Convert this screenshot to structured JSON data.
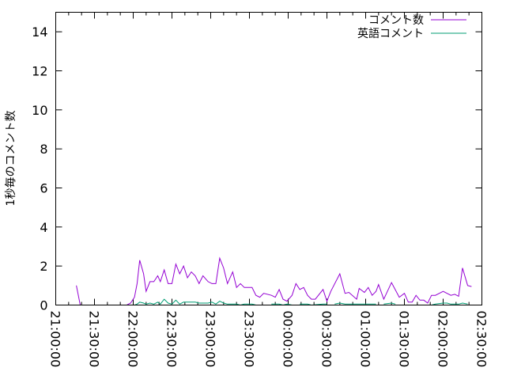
{
  "chart_data": {
    "type": "line",
    "title": "",
    "xlabel": "",
    "ylabel": "1秒毎のコメント数",
    "xlim": [
      "21:00:00",
      "02:30:00"
    ],
    "ylim": [
      0,
      15
    ],
    "x_tick_labels": [
      "21:00:00",
      "21:30:00",
      "22:00:00",
      "22:30:00",
      "23:00:00",
      "23:30:00",
      "00:00:00",
      "00:30:00",
      "01:00:00",
      "01:30:00",
      "02:00:00",
      "02:30:00"
    ],
    "y_tick_labels": [
      "0",
      "2",
      "4",
      "6",
      "8",
      "10",
      "12",
      "14"
    ],
    "grid": false,
    "legend_position": "top-right",
    "series": [
      {
        "name": "コメント数",
        "color": "#9400d3",
        "points": [
          [
            "21:16",
            1.0
          ],
          [
            "21:19",
            0
          ],
          null,
          [
            "21:49",
            0
          ],
          [
            "21:55",
            0
          ],
          [
            "21:58",
            0.1
          ],
          [
            "22:01",
            0.4
          ],
          [
            "22:03",
            1.1
          ],
          [
            "22:05",
            2.3
          ],
          [
            "22:08",
            1.6
          ],
          [
            "22:10",
            0.7
          ],
          [
            "22:13",
            1.2
          ],
          [
            "22:16",
            1.2
          ],
          [
            "22:19",
            1.5
          ],
          [
            "22:21",
            1.2
          ],
          [
            "22:24",
            1.8
          ],
          [
            "22:27",
            1.1
          ],
          [
            "22:30",
            1.1
          ],
          [
            "22:33",
            2.1
          ],
          [
            "22:36",
            1.6
          ],
          [
            "22:39",
            2.0
          ],
          [
            "22:42",
            1.4
          ],
          [
            "22:45",
            1.7
          ],
          [
            "22:48",
            1.5
          ],
          [
            "22:51",
            1.1
          ],
          [
            "22:54",
            1.5
          ],
          [
            "22:58",
            1.2
          ],
          [
            "23:01",
            1.1
          ],
          [
            "23:04",
            1.1
          ],
          [
            "23:07",
            2.4
          ],
          [
            "23:10",
            1.9
          ],
          [
            "23:13",
            1.1
          ],
          [
            "23:17",
            1.7
          ],
          [
            "23:20",
            0.9
          ],
          [
            "23:23",
            1.1
          ],
          [
            "23:26",
            0.9
          ],
          [
            "23:32",
            0.9
          ],
          [
            "23:35",
            0.5
          ],
          [
            "23:38",
            0.4
          ],
          [
            "23:41",
            0.6
          ],
          [
            "23:47",
            0.5
          ],
          [
            "23:50",
            0.4
          ],
          [
            "23:53",
            0.8
          ],
          [
            "23:56",
            0.3
          ],
          [
            "23:59",
            0.2
          ],
          [
            "00:03",
            0.5
          ],
          [
            "00:06",
            1.1
          ],
          [
            "00:09",
            0.8
          ],
          [
            "00:12",
            0.9
          ],
          [
            "00:15",
            0.5
          ],
          [
            "00:18",
            0.3
          ],
          [
            "00:21",
            0.3
          ],
          [
            "00:27",
            0.8
          ],
          [
            "00:30",
            0.2
          ],
          [
            "00:33",
            0.7
          ],
          [
            "00:40",
            1.6
          ],
          [
            "00:44",
            0.6
          ],
          [
            "00:47",
            0.65
          ],
          [
            "00:53",
            0.3
          ],
          [
            "00:55",
            0.85
          ],
          [
            "00:59",
            0.65
          ],
          [
            "01:02",
            0.9
          ],
          [
            "01:05",
            0.5
          ],
          [
            "01:08",
            0.7
          ],
          [
            "01:10",
            1.05
          ],
          [
            "01:14",
            0.3
          ],
          [
            "01:20",
            1.15
          ],
          [
            "01:26",
            0.4
          ],
          [
            "01:30",
            0.6
          ],
          [
            "01:33",
            0.15
          ],
          [
            "01:36",
            0.15
          ],
          [
            "01:39",
            0.5
          ],
          [
            "01:42",
            0.25
          ],
          [
            "01:45",
            0.25
          ],
          [
            "01:48",
            0.1
          ],
          [
            "01:51",
            0.5
          ],
          [
            "01:54",
            0.5
          ],
          [
            "02:00",
            0.7
          ],
          [
            "02:06",
            0.5
          ],
          [
            "02:09",
            0.55
          ],
          [
            "02:12",
            0.45
          ],
          [
            "02:15",
            1.9
          ],
          [
            "02:19",
            1.0
          ],
          [
            "02:22",
            0.95
          ]
        ]
      },
      {
        "name": "英語コメント",
        "color": "#009e73",
        "points": [
          [
            "22:01",
            0
          ],
          [
            "22:03",
            0.05
          ],
          [
            "22:05",
            0.15
          ],
          [
            "22:08",
            0.1
          ],
          [
            "22:10",
            0.05
          ],
          [
            "22:13",
            0.1
          ],
          [
            "22:16",
            0.05
          ],
          [
            "22:19",
            0.15
          ],
          [
            "22:21",
            0.05
          ],
          [
            "22:24",
            0.3
          ],
          [
            "22:27",
            0.1
          ],
          [
            "22:30",
            0.05
          ],
          [
            "22:33",
            0.25
          ],
          [
            "22:36",
            0.05
          ],
          [
            "22:39",
            0.15
          ],
          [
            "22:42",
            0.15
          ],
          [
            "22:45",
            0.15
          ],
          [
            "22:48",
            0.15
          ],
          [
            "22:51",
            0.1
          ],
          [
            "22:54",
            0.1
          ],
          [
            "22:58",
            0.1
          ],
          [
            "23:01",
            0.15
          ],
          [
            "23:04",
            0.05
          ],
          [
            "23:07",
            0.2
          ],
          [
            "23:10",
            0.1
          ],
          [
            "23:13",
            0.05
          ],
          [
            "23:17",
            0.05
          ],
          [
            "23:20",
            0.05
          ],
          [
            "23:23",
            0
          ],
          [
            "23:26",
            0.05
          ],
          [
            "23:32",
            0.05
          ],
          [
            "23:35",
            0
          ],
          [
            "23:38",
            0
          ],
          null,
          [
            "23:47",
            0.05
          ],
          [
            "23:50",
            0.05
          ],
          [
            "23:53",
            0.05
          ],
          [
            "23:56",
            0
          ],
          [
            "23:59",
            0.05
          ],
          [
            "00:03",
            0
          ],
          null,
          [
            "00:09",
            0.05
          ],
          [
            "00:12",
            0.05
          ],
          [
            "00:15",
            0.05
          ],
          [
            "00:18",
            0
          ],
          [
            "00:27",
            0.05
          ],
          [
            "00:30",
            0.05
          ],
          null,
          [
            "00:36",
            0.05
          ],
          [
            "00:40",
            0.1
          ],
          [
            "00:44",
            0.05
          ],
          [
            "00:47",
            0.05
          ],
          [
            "00:53",
            0.05
          ],
          [
            "00:59",
            0.05
          ],
          [
            "01:05",
            0.05
          ],
          [
            "01:08",
            0.05
          ],
          null,
          [
            "01:14",
            0.05
          ],
          [
            "01:20",
            0.1
          ],
          [
            "01:23",
            0.05
          ],
          null,
          [
            "01:51",
            0
          ],
          [
            "01:54",
            0.05
          ],
          [
            "02:00",
            0.1
          ],
          [
            "02:03",
            0.1
          ],
          [
            "02:06",
            0.05
          ],
          [
            "02:09",
            0.05
          ],
          [
            "02:12",
            0.05
          ],
          [
            "02:15",
            0.1
          ],
          [
            "02:19",
            0.05
          ]
        ]
      }
    ]
  }
}
